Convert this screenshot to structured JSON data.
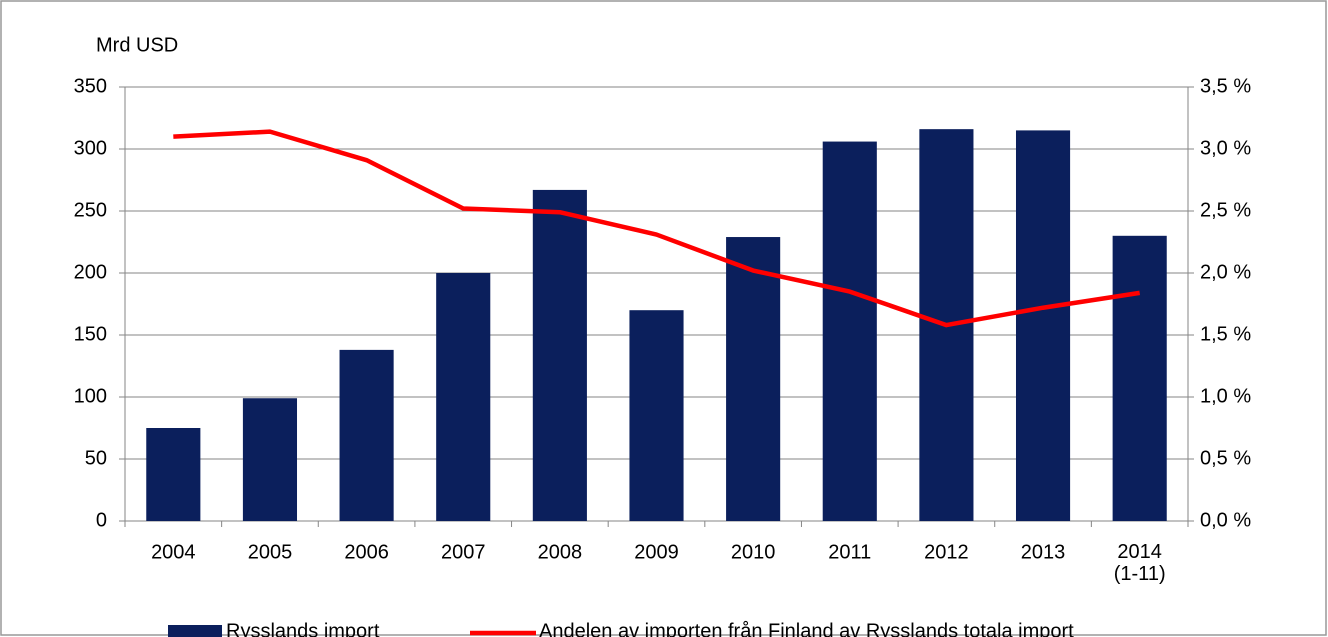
{
  "chart_data": {
    "type": "bar",
    "y_label": "Mrd USD",
    "categories": [
      "2004",
      "2005",
      "2006",
      "2007",
      "2008",
      "2009",
      "2010",
      "2011",
      "2012",
      "2013",
      "2014\n(1-11)"
    ],
    "series": [
      {
        "name": "Rysslands import",
        "type": "bar",
        "color": "#0b1f5c",
        "values": [
          75,
          99,
          138,
          200,
          267,
          170,
          229,
          306,
          316,
          315,
          230
        ]
      },
      {
        "name": "Andelen av importen från Finland av Rysslands totala import",
        "type": "line",
        "axis": "y2",
        "color": "#ff0000",
        "values": [
          3.1,
          3.14,
          2.91,
          2.52,
          2.49,
          2.31,
          2.02,
          1.85,
          1.58,
          1.72,
          1.84
        ]
      }
    ],
    "ylim": [
      0,
      350
    ],
    "yticks": [
      0,
      50,
      100,
      150,
      200,
      250,
      300,
      350
    ],
    "y2lim": [
      0,
      3.5
    ],
    "y2ticks": [
      {
        "value": 0,
        "label": "0,0 %"
      },
      {
        "value": 0.5,
        "label": "0,5 %"
      },
      {
        "value": 1.0,
        "label": "1,0 %"
      },
      {
        "value": 1.5,
        "label": "1,5 %"
      },
      {
        "value": 2.0,
        "label": "2,0 %"
      },
      {
        "value": 2.5,
        "label": "2,5 %"
      },
      {
        "value": 3.0,
        "label": "3,0 %"
      },
      {
        "value": 3.5,
        "label": "3,5 %"
      }
    ],
    "grid": true,
    "legend": "bottom"
  }
}
